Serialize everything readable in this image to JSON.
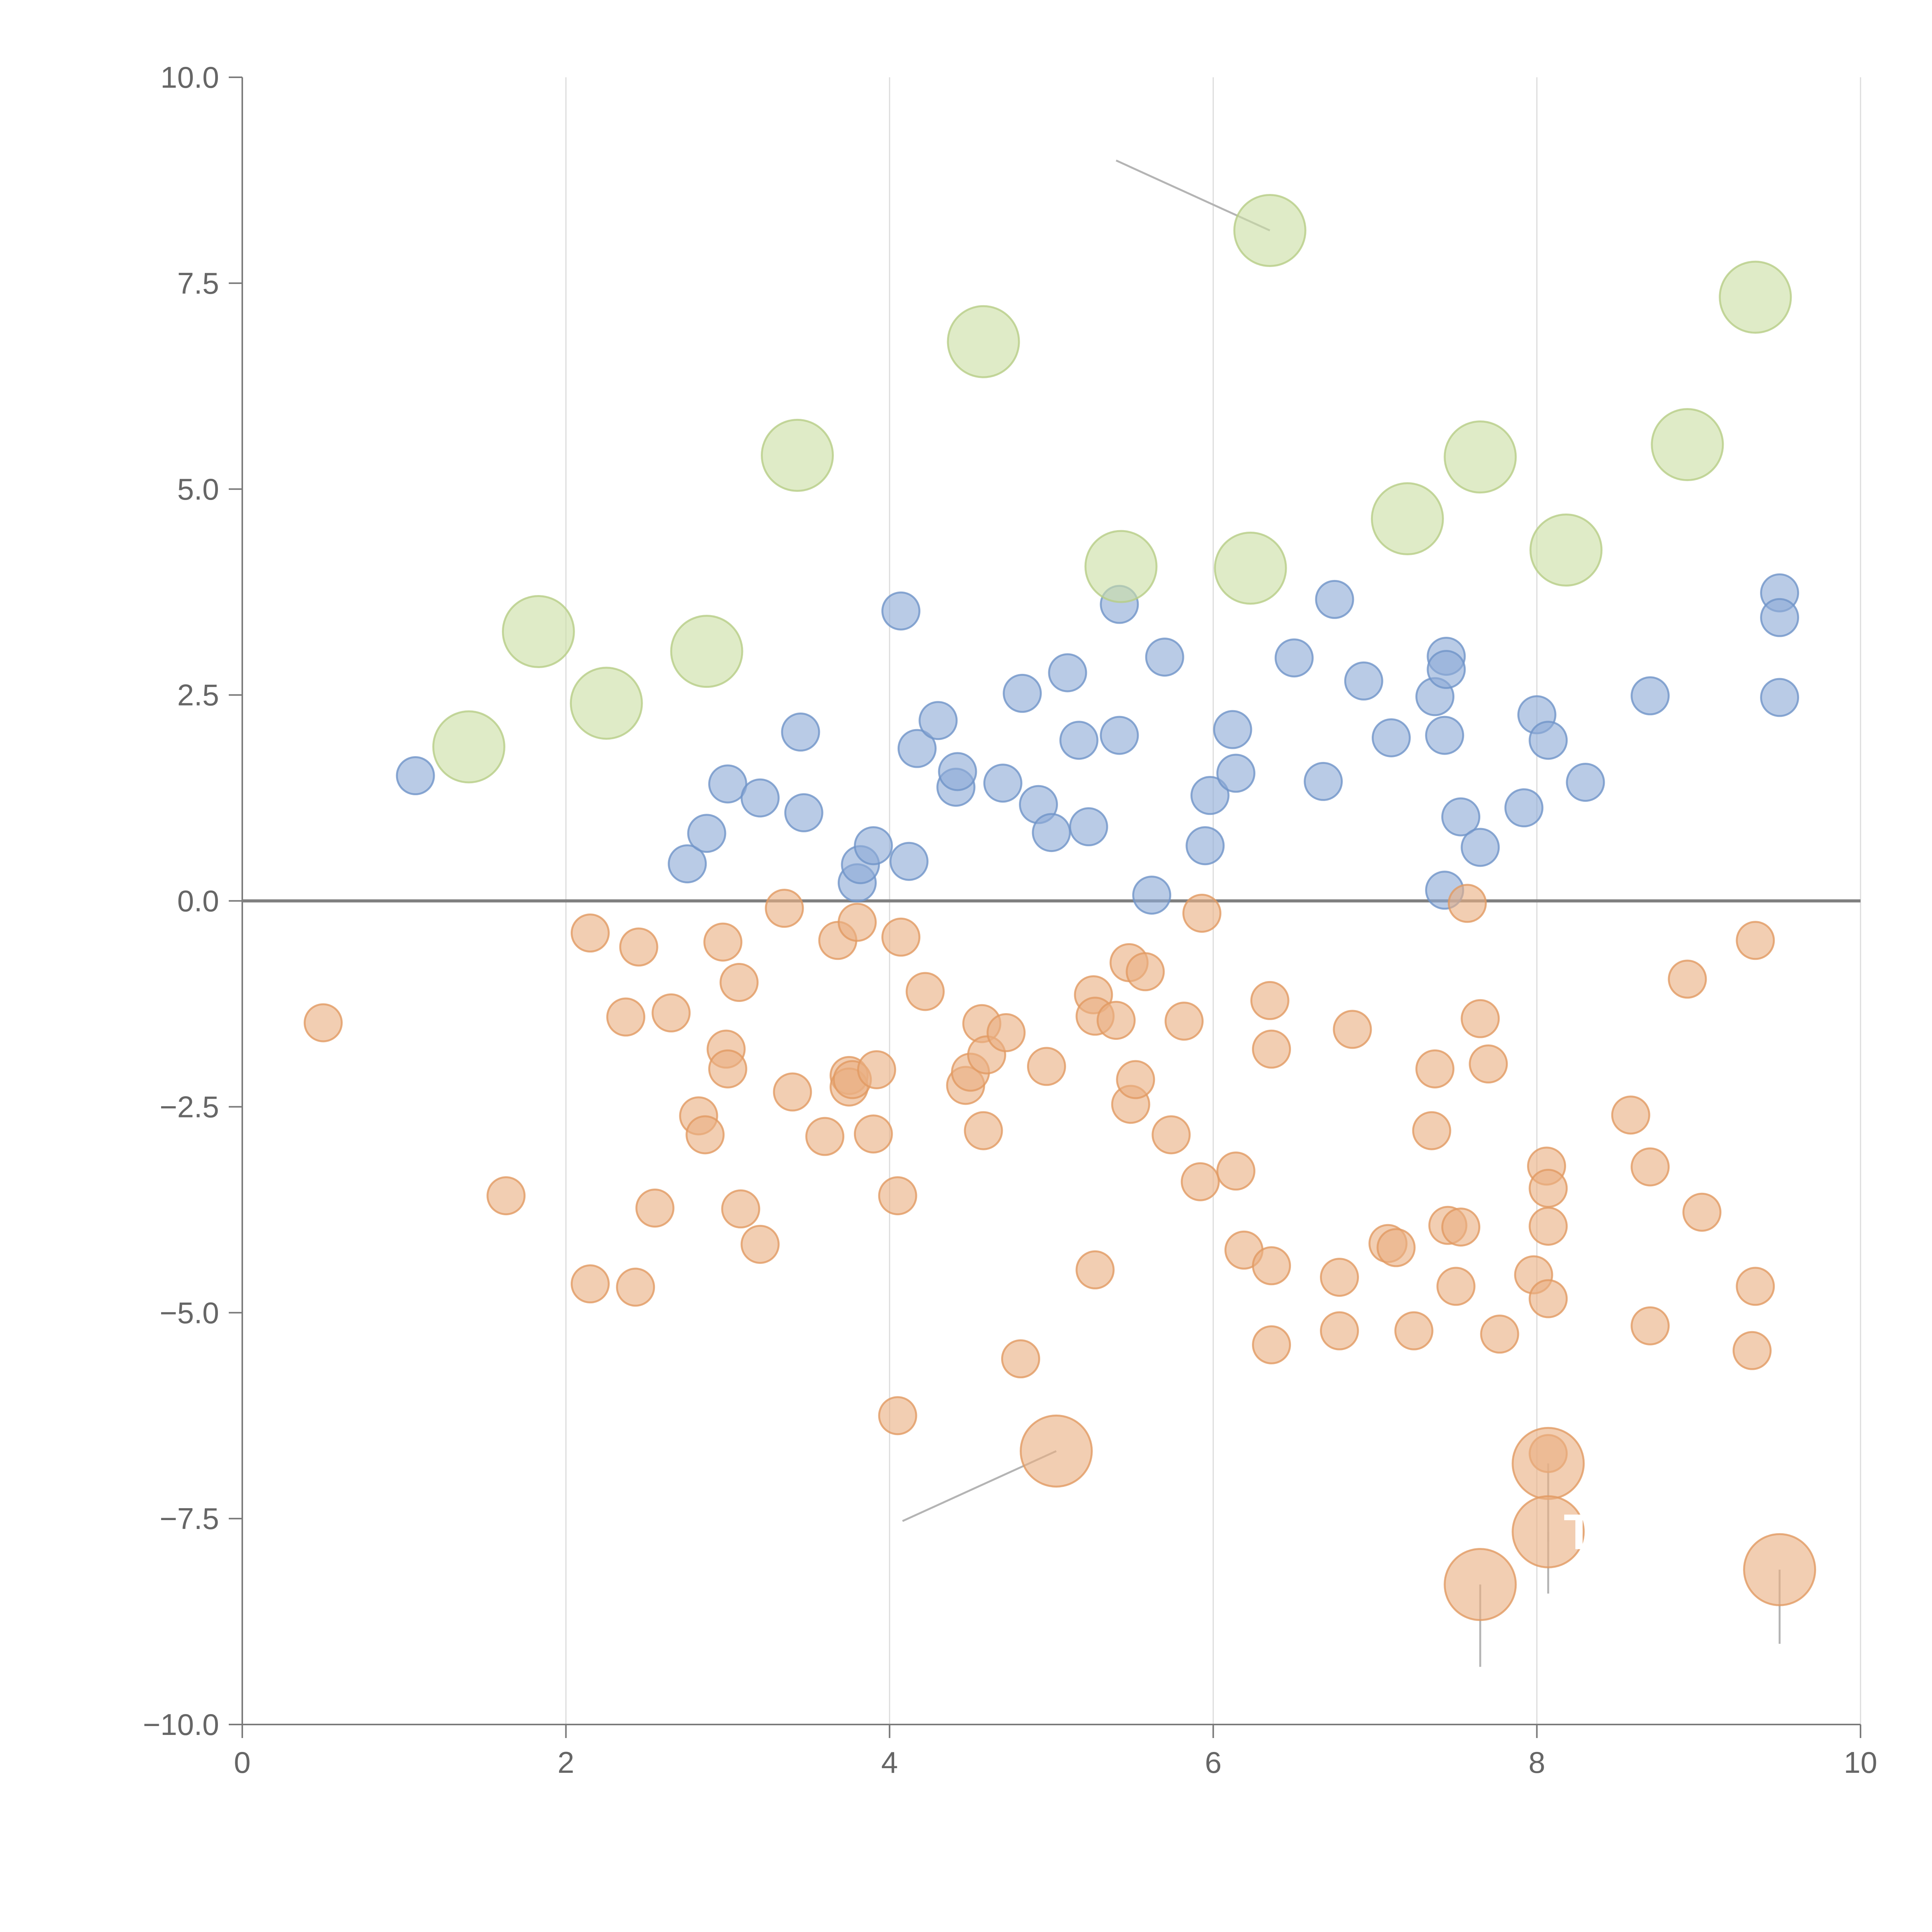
{
  "colors": {
    "background": "#ffffff",
    "axis": "#7a7a7a",
    "zero_line": "#7f7f7f",
    "grid": "#dcdcdc",
    "tick_text": "#666666",
    "leader_line": "#b4b4b4",
    "label_text": "#ffffff"
  },
  "chart_data": {
    "type": "scatter",
    "title": "",
    "xlabel": "",
    "ylabel": "",
    "xlim": [
      0,
      10
    ],
    "ylim": [
      -10,
      10
    ],
    "grid": "vertical-only",
    "zero_line": true,
    "legend": "none",
    "x_ticks": [
      {
        "value": 0,
        "label": "0"
      },
      {
        "value": 2,
        "label": "2"
      },
      {
        "value": 4,
        "label": "4"
      },
      {
        "value": 6,
        "label": "6"
      },
      {
        "value": 8,
        "label": "8"
      },
      {
        "value": 10,
        "label": "10"
      }
    ],
    "y_ticks": [
      {
        "value": 10,
        "label": "10.0"
      },
      {
        "value": 7.5,
        "label": "7.5"
      },
      {
        "value": 5,
        "label": "5.0"
      },
      {
        "value": 2.5,
        "label": "2.5"
      },
      {
        "value": 0,
        "label": "0.0"
      },
      {
        "value": -2.5,
        "label": "−2.5"
      },
      {
        "value": -5,
        "label": "−5.0"
      },
      {
        "value": -7.5,
        "label": "−7.5"
      },
      {
        "value": -10,
        "label": "−10.0"
      }
    ],
    "series": [
      {
        "name": "blue",
        "color": "#8eabd6",
        "stroke": "#6f93c8",
        "size": "small",
        "points": [
          [
            1.07,
            1.52
          ],
          [
            2.75,
            0.45
          ],
          [
            2.87,
            0.82
          ],
          [
            3.0,
            1.42
          ],
          [
            3.2,
            1.25
          ],
          [
            3.45,
            2.05
          ],
          [
            3.47,
            1.07
          ],
          [
            3.8,
            0.22
          ],
          [
            3.82,
            0.44
          ],
          [
            3.9,
            0.67
          ],
          [
            4.07,
            3.52
          ],
          [
            4.12,
            0.48
          ],
          [
            4.17,
            1.85
          ],
          [
            4.3,
            2.19
          ],
          [
            4.41,
            1.38
          ],
          [
            4.42,
            1.57
          ],
          [
            4.7,
            1.43
          ],
          [
            4.82,
            2.52
          ],
          [
            4.92,
            1.17
          ],
          [
            5.0,
            0.83
          ],
          [
            5.1,
            2.77
          ],
          [
            5.17,
            1.95
          ],
          [
            5.23,
            0.9
          ],
          [
            5.42,
            2.01
          ],
          [
            5.42,
            3.6
          ],
          [
            5.62,
            0.07
          ],
          [
            5.7,
            2.96
          ],
          [
            5.95,
            0.67
          ],
          [
            5.98,
            1.28
          ],
          [
            6.12,
            2.08
          ],
          [
            6.14,
            1.55
          ],
          [
            6.5,
            2.95
          ],
          [
            6.68,
            1.45
          ],
          [
            6.75,
            3.66
          ],
          [
            6.93,
            2.67
          ],
          [
            7.1,
            1.98
          ],
          [
            7.37,
            2.48
          ],
          [
            7.43,
            0.13
          ],
          [
            7.43,
            2.01
          ],
          [
            7.44,
            2.97
          ],
          [
            7.44,
            2.81
          ],
          [
            7.53,
            1.02
          ],
          [
            7.65,
            0.65
          ],
          [
            7.92,
            1.13
          ],
          [
            8.0,
            2.26
          ],
          [
            8.07,
            1.95
          ],
          [
            8.3,
            1.44
          ],
          [
            8.7,
            2.49
          ],
          [
            9.5,
            3.74
          ],
          [
            9.5,
            3.44
          ],
          [
            9.5,
            2.47
          ]
        ]
      },
      {
        "name": "orange",
        "color": "#eab083",
        "stroke": "#e19a62",
        "size": "small",
        "points": [
          [
            0.5,
            -1.48
          ],
          [
            1.63,
            -3.58
          ],
          [
            2.15,
            -0.39
          ],
          [
            2.15,
            -4.65
          ],
          [
            2.37,
            -1.41
          ],
          [
            2.43,
            -4.69
          ],
          [
            2.45,
            -0.56
          ],
          [
            2.55,
            -3.73
          ],
          [
            2.65,
            -1.36
          ],
          [
            2.82,
            -2.61
          ],
          [
            2.86,
            -2.84
          ],
          [
            2.97,
            -0.5
          ],
          [
            2.99,
            -1.8
          ],
          [
            3.0,
            -2.04
          ],
          [
            3.07,
            -0.99
          ],
          [
            3.08,
            -3.74
          ],
          [
            3.2,
            -4.17
          ],
          [
            3.35,
            -0.09
          ],
          [
            3.4,
            -2.32
          ],
          [
            3.6,
            -2.86
          ],
          [
            3.68,
            -0.48
          ],
          [
            3.75,
            -2.12
          ],
          [
            3.75,
            -2.26
          ],
          [
            3.77,
            -2.17
          ],
          [
            3.8,
            -0.26
          ],
          [
            3.9,
            -2.83
          ],
          [
            3.92,
            -2.05
          ],
          [
            4.05,
            -3.58
          ],
          [
            4.05,
            -6.25
          ],
          [
            4.07,
            -0.44
          ],
          [
            4.22,
            -1.1
          ],
          [
            4.47,
            -2.24
          ],
          [
            4.5,
            -2.08
          ],
          [
            4.57,
            -1.49
          ],
          [
            4.58,
            -2.79
          ],
          [
            4.6,
            -1.87
          ],
          [
            4.72,
            -1.6
          ],
          [
            4.81,
            -5.56
          ],
          [
            4.97,
            -2.01
          ],
          [
            5.26,
            -1.14
          ],
          [
            5.27,
            -1.4
          ],
          [
            5.27,
            -4.48
          ],
          [
            5.4,
            -1.45
          ],
          [
            5.48,
            -0.75
          ],
          [
            5.49,
            -2.47
          ],
          [
            5.52,
            -2.17
          ],
          [
            5.58,
            -0.86
          ],
          [
            5.74,
            -2.84
          ],
          [
            5.82,
            -1.46
          ],
          [
            5.92,
            -3.41
          ],
          [
            5.93,
            -0.15
          ],
          [
            6.14,
            -3.28
          ],
          [
            6.19,
            -4.24
          ],
          [
            6.35,
            -1.21
          ],
          [
            6.36,
            -1.8
          ],
          [
            6.36,
            -4.43
          ],
          [
            6.36,
            -5.39
          ],
          [
            6.78,
            -4.57
          ],
          [
            6.78,
            -5.22
          ],
          [
            6.86,
            -1.56
          ],
          [
            7.08,
            -4.16
          ],
          [
            7.13,
            -4.21
          ],
          [
            7.24,
            -5.22
          ],
          [
            7.35,
            -2.79
          ],
          [
            7.37,
            -2.04
          ],
          [
            7.45,
            -3.94
          ],
          [
            7.5,
            -4.68
          ],
          [
            7.53,
            -3.96
          ],
          [
            7.57,
            -0.03
          ],
          [
            7.65,
            -1.43
          ],
          [
            7.7,
            -1.98
          ],
          [
            7.77,
            -5.26
          ],
          [
            7.98,
            -4.54
          ],
          [
            8.06,
            -3.22
          ],
          [
            8.07,
            -3.49
          ],
          [
            8.07,
            -3.95
          ],
          [
            8.07,
            -4.83
          ],
          [
            8.07,
            -6.71
          ],
          [
            8.58,
            -2.6
          ],
          [
            8.7,
            -3.23
          ],
          [
            8.7,
            -5.16
          ],
          [
            8.93,
            -0.95
          ],
          [
            9.02,
            -3.78
          ],
          [
            9.33,
            -5.46
          ],
          [
            9.35,
            -0.48
          ],
          [
            9.35,
            -4.68
          ]
        ]
      },
      {
        "name": "green",
        "color": "#cbdea5",
        "stroke": "#b6cd86",
        "size": "large",
        "points": [
          [
            1.4,
            1.87
          ],
          [
            1.83,
            3.27
          ],
          [
            2.25,
            2.4
          ],
          [
            2.87,
            3.03
          ],
          [
            3.43,
            5.41
          ],
          [
            4.58,
            6.79
          ],
          [
            5.43,
            4.06
          ],
          [
            6.23,
            4.04
          ],
          [
            6.35,
            8.14
          ],
          [
            7.2,
            4.64
          ],
          [
            7.65,
            5.39
          ],
          [
            8.18,
            4.26
          ],
          [
            8.93,
            5.54
          ],
          [
            9.35,
            7.33
          ]
        ]
      },
      {
        "name": "orange-large",
        "color": "#eab083",
        "stroke": "#e19a62",
        "size": "large",
        "points": [
          [
            5.03,
            -6.68
          ],
          [
            7.65,
            -8.3
          ],
          [
            8.07,
            -6.83
          ],
          [
            8.07,
            -7.66
          ],
          [
            9.5,
            -8.12
          ]
        ]
      }
    ],
    "annotations": [
      {
        "text": "T",
        "x": 8.07,
        "y": -7.66
      }
    ]
  }
}
